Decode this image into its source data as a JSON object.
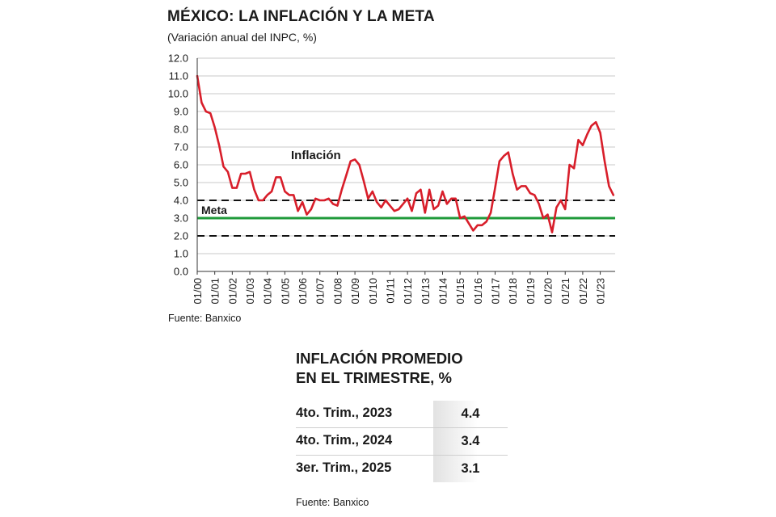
{
  "title": "MÉXICO: LA INFLACIÓN Y LA META",
  "subtitle": "(Variación anual del INPC, %)",
  "source": "Fuente: Banxico",
  "chart_data": {
    "type": "line",
    "ylim": [
      0,
      12
    ],
    "yticks": [
      "12.0",
      "11.0",
      "10.0",
      "9.0",
      "8.0",
      "7.0",
      "6.0",
      "5.0",
      "4.0",
      "3.0",
      "2.0",
      "1.0",
      "0.0"
    ],
    "xticks": [
      "01/00",
      "01/01",
      "01/02",
      "01/03",
      "01/04",
      "01/05",
      "01/06",
      "01/07",
      "01/08",
      "01/09",
      "01/10",
      "01/11",
      "01/12",
      "01/13",
      "01/14",
      "01/15",
      "01/16",
      "01/17",
      "01/18",
      "01/19",
      "01/20",
      "01/21",
      "01/22",
      "01/23"
    ],
    "xlim": [
      2000.0,
      2023.85
    ],
    "grid": true,
    "series": [
      {
        "name": "Inflación",
        "color": "#d81e2a",
        "x": [
          2000.0,
          2000.25,
          2000.5,
          2000.75,
          2001.0,
          2001.25,
          2001.5,
          2001.75,
          2002.0,
          2002.25,
          2002.5,
          2002.75,
          2003.0,
          2003.25,
          2003.5,
          2003.75,
          2004.0,
          2004.25,
          2004.5,
          2004.75,
          2005.0,
          2005.25,
          2005.5,
          2005.75,
          2006.0,
          2006.25,
          2006.5,
          2006.75,
          2007.0,
          2007.25,
          2007.5,
          2007.75,
          2008.0,
          2008.25,
          2008.5,
          2008.75,
          2009.0,
          2009.25,
          2009.5,
          2009.75,
          2010.0,
          2010.25,
          2010.5,
          2010.75,
          2011.0,
          2011.25,
          2011.5,
          2011.75,
          2012.0,
          2012.25,
          2012.5,
          2012.75,
          2013.0,
          2013.25,
          2013.5,
          2013.75,
          2014.0,
          2014.25,
          2014.5,
          2014.75,
          2015.0,
          2015.25,
          2015.5,
          2015.75,
          2016.0,
          2016.25,
          2016.5,
          2016.75,
          2017.0,
          2017.25,
          2017.5,
          2017.75,
          2018.0,
          2018.25,
          2018.5,
          2018.75,
          2019.0,
          2019.25,
          2019.5,
          2019.75,
          2020.0,
          2020.25,
          2020.5,
          2020.75,
          2021.0,
          2021.25,
          2021.5,
          2021.75,
          2022.0,
          2022.25,
          2022.5,
          2022.75,
          2023.0,
          2023.25,
          2023.5,
          2023.75
        ],
        "y": [
          11.0,
          9.5,
          9.0,
          8.9,
          8.1,
          7.1,
          5.9,
          5.6,
          4.7,
          4.7,
          5.5,
          5.5,
          5.6,
          4.6,
          4.0,
          4.0,
          4.3,
          4.5,
          5.3,
          5.3,
          4.5,
          4.3,
          4.3,
          3.4,
          3.9,
          3.2,
          3.5,
          4.1,
          4.0,
          4.0,
          4.1,
          3.8,
          3.7,
          4.6,
          5.4,
          6.2,
          6.3,
          6.0,
          5.1,
          4.1,
          4.5,
          3.9,
          3.6,
          4.0,
          3.7,
          3.4,
          3.5,
          3.8,
          4.1,
          3.4,
          4.4,
          4.6,
          3.3,
          4.6,
          3.5,
          3.7,
          4.5,
          3.8,
          4.1,
          4.1,
          3.0,
          3.1,
          2.7,
          2.3,
          2.6,
          2.6,
          2.8,
          3.3,
          4.7,
          6.2,
          6.5,
          6.7,
          5.5,
          4.6,
          4.8,
          4.8,
          4.4,
          4.3,
          3.8,
          3.0,
          3.2,
          2.2,
          3.6,
          4.0,
          3.5,
          6.0,
          5.8,
          7.4,
          7.1,
          7.7,
          8.2,
          8.4,
          7.8,
          6.2,
          4.8,
          4.3
        ],
        "label": "Inflación"
      }
    ],
    "reference_lines": [
      {
        "name": "upper-band",
        "value": 4.0,
        "style": "dashed",
        "color": "#111111"
      },
      {
        "name": "meta",
        "value": 3.0,
        "style": "solid",
        "color": "#1f9a3a",
        "label": "Meta"
      },
      {
        "name": "lower-band",
        "value": 2.0,
        "style": "dashed",
        "color": "#111111"
      }
    ]
  },
  "table": {
    "title_line1": "INFLACIÓN PROMEDIO",
    "title_line2": "EN EL TRIMESTRE, %",
    "rows": [
      {
        "label": "4to. Trim., 2023",
        "value": "4.4"
      },
      {
        "label": "4to. Trim., 2024",
        "value": "3.4"
      },
      {
        "label": "3er. Trim., 2025",
        "value": "3.1"
      }
    ],
    "source": "Fuente: Banxico"
  }
}
